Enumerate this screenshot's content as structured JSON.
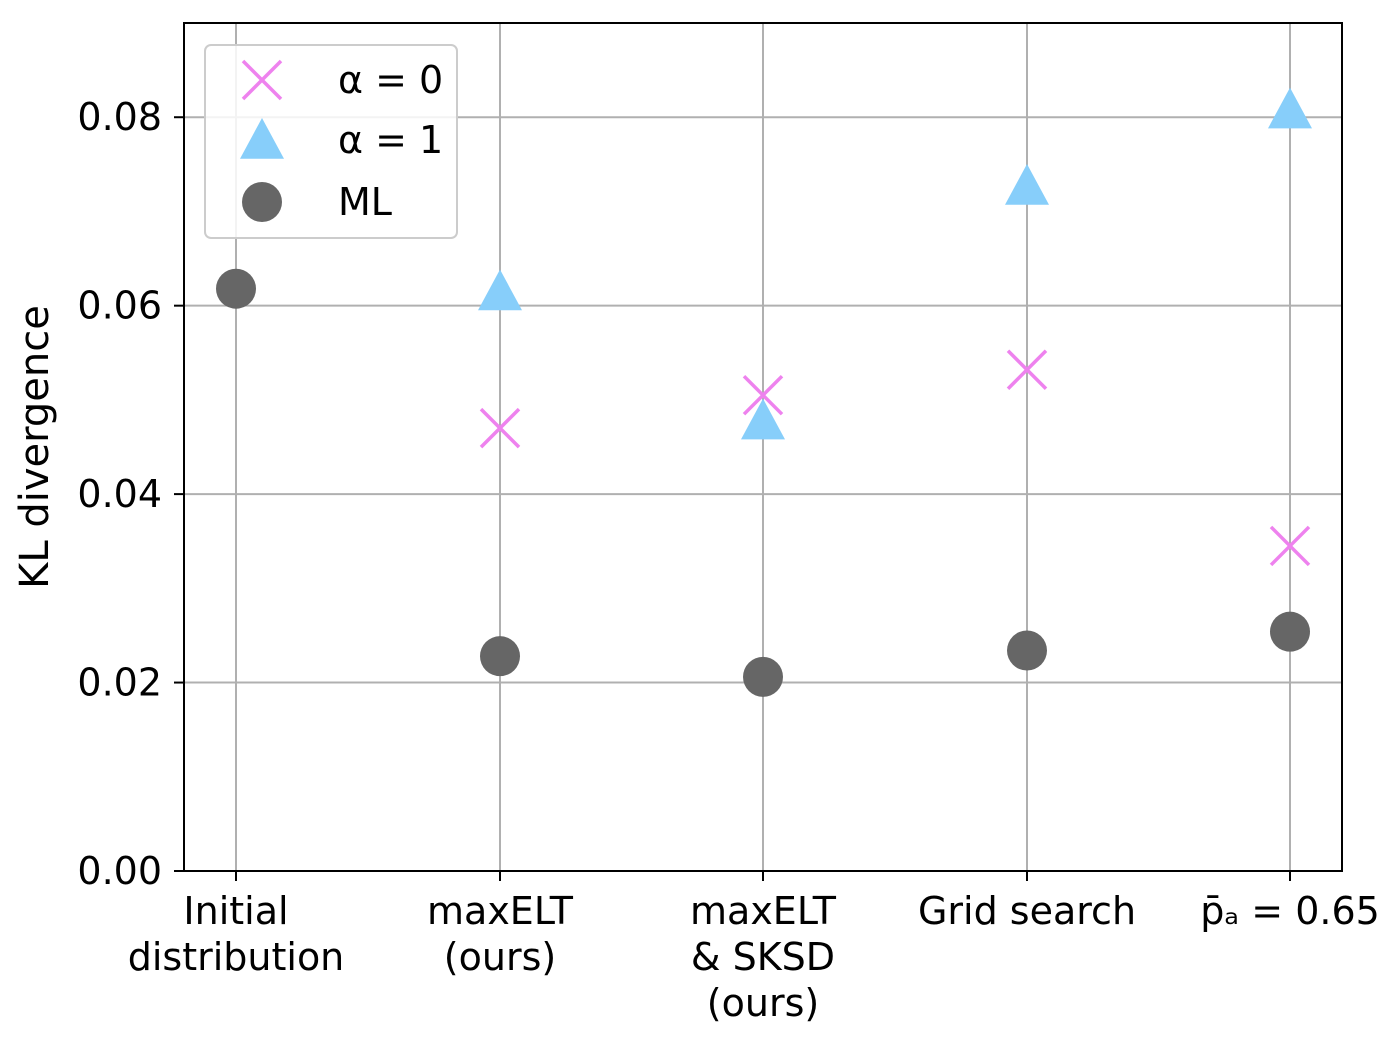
{
  "chart_data": {
    "type": "scatter",
    "categories": [
      [
        "Initial",
        "distribution"
      ],
      [
        "maxELT",
        "(ours)"
      ],
      [
        "maxELT",
        "& SKSD",
        "(ours)"
      ],
      [
        "Grid search"
      ],
      [
        "p̄ₐ = 0.65"
      ]
    ],
    "ylabel": "KL divergence",
    "ylim": [
      0.0,
      0.09
    ],
    "yticks": [
      "0.00",
      "0.02",
      "0.04",
      "0.06",
      "0.08"
    ],
    "ytick_values": [
      0.0,
      0.02,
      0.04,
      0.06,
      0.08
    ],
    "grid": true,
    "legend_position": "top-left",
    "series": [
      {
        "name": "α = 0",
        "marker": "x",
        "color": "#ee82ee",
        "values": [
          null,
          0.047,
          0.0505,
          0.0532,
          0.0345
        ]
      },
      {
        "name": "α = 1",
        "marker": "triangle",
        "color": "#87cefa",
        "values": [
          null,
          0.0615,
          0.0478,
          0.0727,
          0.0808
        ]
      },
      {
        "name": "ML",
        "marker": "circle",
        "color": "#666666",
        "values": [
          0.0618,
          0.0228,
          0.0206,
          0.0234,
          0.0254
        ]
      }
    ]
  }
}
